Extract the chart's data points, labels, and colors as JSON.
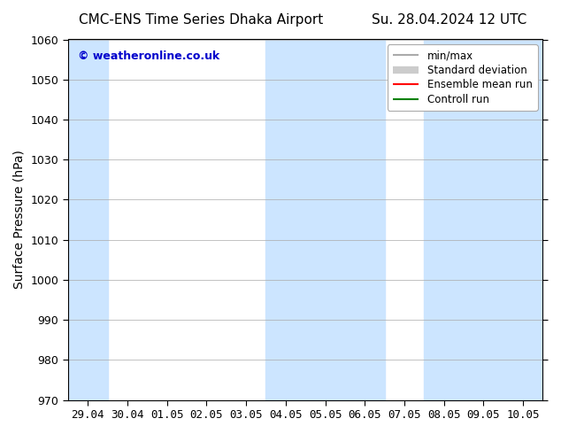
{
  "title_left": "CMC-ENS Time Series Dhaka Airport",
  "title_right": "Su. 28.04.2024 12 UTC",
  "ylabel": "Surface Pressure (hPa)",
  "background_color": "#ffffff",
  "plot_bg_color": "#ffffff",
  "ylim": [
    970,
    1060
  ],
  "yticks": [
    970,
    980,
    990,
    1000,
    1010,
    1020,
    1030,
    1040,
    1050,
    1060
  ],
  "xtick_labels": [
    "29.04",
    "30.04",
    "01.05",
    "02.05",
    "03.05",
    "04.05",
    "05.05",
    "06.05",
    "07.05",
    "08.05",
    "09.05",
    "10.05"
  ],
  "shaded_bands": [
    {
      "xstart": -0.5,
      "xend": 0.5
    },
    {
      "xstart": 4.5,
      "xend": 7.5
    },
    {
      "xstart": 8.5,
      "xend": 11.5
    }
  ],
  "shaded_color": "#cce5ff",
  "watermark_text": "© weatheronline.co.uk",
  "watermark_color": "#0000cc",
  "legend_items": [
    {
      "label": "min/max",
      "color": "#aaaaaa",
      "lw": 1.5
    },
    {
      "label": "Standard deviation",
      "color": "#cccccc",
      "lw": 6
    },
    {
      "label": "Ensemble mean run",
      "color": "#ff0000",
      "lw": 1.5
    },
    {
      "label": "Controll run",
      "color": "#008000",
      "lw": 1.5
    }
  ],
  "title_fontsize": 11,
  "axis_label_fontsize": 10,
  "tick_fontsize": 9,
  "legend_fontsize": 8.5
}
